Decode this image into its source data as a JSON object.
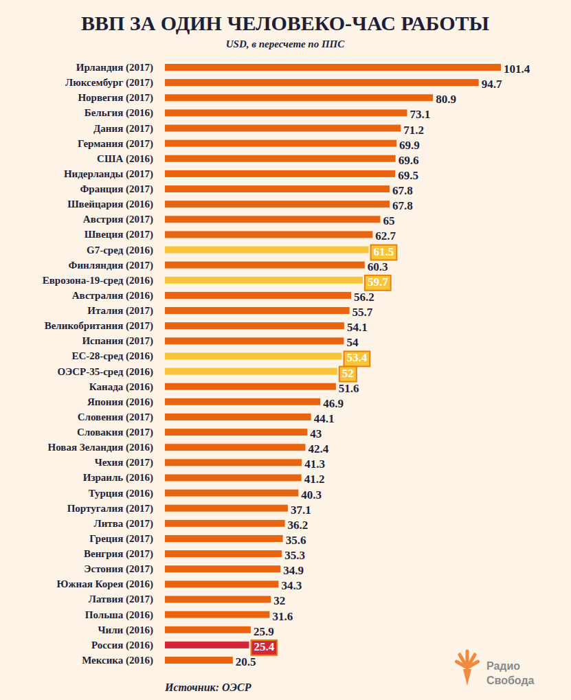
{
  "chart_data": {
    "type": "bar",
    "orientation": "horizontal",
    "title": "ВВП ЗА ОДИН ЧЕЛОВЕКО-ЧАС РАБОТЫ",
    "subtitle": "USD, в пересчете по ППС",
    "source": "Источник: ОЭСР",
    "logo": [
      "Радио",
      "Свобода"
    ],
    "categories": [
      "Ирландия (2017)",
      "Люксембург (2017)",
      "Норвегия (2017)",
      "Бельгия (2016)",
      "Дания (2017)",
      "Германия (2017)",
      "США (2016)",
      "Нидерланды (2017)",
      "Франция (2017)",
      "Швейцария (2016)",
      "Австрия (2017)",
      "Швеция (2017)",
      "G7-сред (2016)",
      "Финляндия (2017)",
      "Еврозона-19-сред (2016)",
      "Австралия (2016)",
      "Италия (2017)",
      "Великобритания (2017)",
      "Испания (2017)",
      "ЕС-28-сред (2016)",
      "ОЭСР-35-сред (2016)",
      "Канада (2016)",
      "Япония (2016)",
      "Словения (2017)",
      "Словакия (2017)",
      "Новая Зеландия (2016)",
      "Чехия (2017)",
      "Израиль (2016)",
      "Турция (2016)",
      "Португалия (2017)",
      "Литва (2017)",
      "Греция (2017)",
      "Венгрия (2017)",
      "Эстония (2017)",
      "Южная Корея (2016)",
      "Латвия (2017)",
      "Польша (2016)",
      "Чили (2016)",
      "Россия (2016)",
      "Мексика (2016)"
    ],
    "values": [
      101.4,
      94.7,
      80.9,
      73.1,
      71.2,
      69.9,
      69.6,
      69.5,
      67.8,
      67.8,
      65,
      62.7,
      61.5,
      60.3,
      59.7,
      56.2,
      55.7,
      54.1,
      54,
      53.4,
      52,
      51.6,
      46.9,
      44.1,
      43,
      42.4,
      41.3,
      41.2,
      40.3,
      37.1,
      36.2,
      35.6,
      35.3,
      34.9,
      34.3,
      32,
      31.6,
      25.9,
      25.4,
      20.5
    ],
    "colors": [
      "#e8640e",
      "#e8640e",
      "#e8640e",
      "#e8640e",
      "#e8640e",
      "#e8640e",
      "#e8640e",
      "#e8640e",
      "#e8640e",
      "#e8640e",
      "#e8640e",
      "#e8640e",
      "#f8c43a",
      "#e8640e",
      "#f8c43a",
      "#e8640e",
      "#e8640e",
      "#e8640e",
      "#e8640e",
      "#f8c43a",
      "#f8c43a",
      "#e8640e",
      "#e8640e",
      "#e8640e",
      "#e8640e",
      "#e8640e",
      "#e8640e",
      "#e8640e",
      "#e8640e",
      "#e8640e",
      "#e8640e",
      "#e8640e",
      "#e8640e",
      "#e8640e",
      "#e8640e",
      "#e8640e",
      "#e8640e",
      "#e8640e",
      "#d3263a",
      "#e8640e"
    ],
    "xlim": [
      0,
      101.4
    ],
    "xticks": [],
    "grid": false,
    "tick_labels": "y",
    "data_labels": true
  }
}
